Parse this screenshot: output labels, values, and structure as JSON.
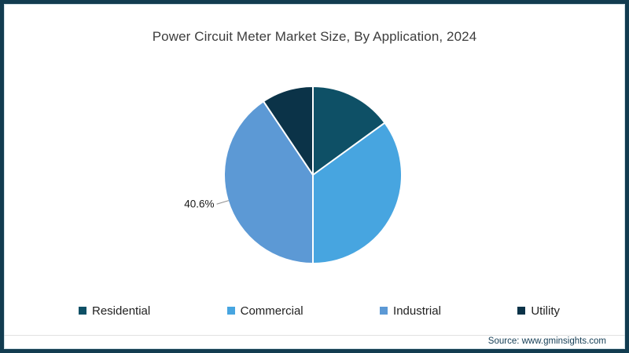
{
  "page": {
    "source_text": "Source: www.gminsights.com"
  },
  "colors": {
    "frame_border": "#123c50",
    "title_text": "#3d3d3d",
    "legend_text": "#1f1f1f",
    "source_text": "#143d55",
    "data_label_text": "#1a1a1a",
    "slice_divider": "#ffffff",
    "leader_line": "#8f8f8f",
    "footer_divider": "#e2e2e2"
  },
  "chart_data": {
    "type": "pie",
    "title": "Power Circuit Meter Market Size, By Application, 2024",
    "start_angle_deg": 0,
    "direction": "clockwise",
    "legend_position": "bottom",
    "grid": false,
    "slices": [
      {
        "name": "Residential",
        "value_pct": 15.0,
        "color": "#0e5066",
        "label_visible": false,
        "label_text": ""
      },
      {
        "name": "Commercial",
        "value_pct": 35.0,
        "color": "#47a5e0",
        "label_visible": false,
        "label_text": ""
      },
      {
        "name": "Industrial",
        "value_pct": 40.6,
        "color": "#5c99d5",
        "label_visible": true,
        "label_text": "40.6%"
      },
      {
        "name": "Utility",
        "value_pct": 9.4,
        "color": "#0b3348",
        "label_visible": false,
        "label_text": ""
      }
    ]
  }
}
